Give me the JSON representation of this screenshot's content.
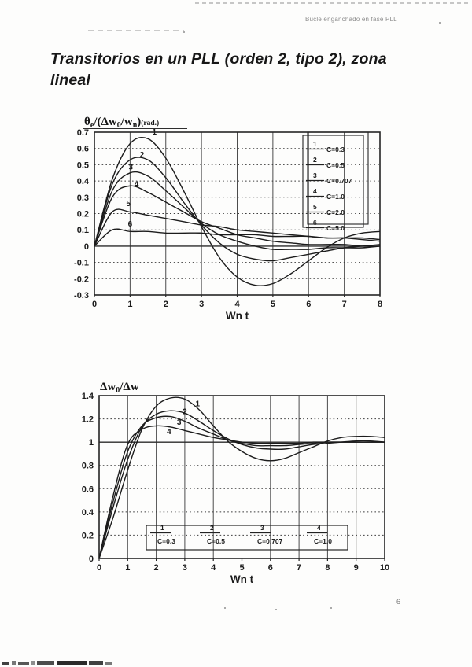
{
  "page": {
    "header": "Bucle enganchado en fase PLL",
    "title": "Transitorios en un PLL (orden 2, tipo 2), zona lineal",
    "page_number": "6"
  },
  "chart_data": [
    {
      "type": "line",
      "ylabel": "θe/(Δw0/wn)(rad.)",
      "ylabel_parts": [
        [
          "θ",
          "n"
        ],
        [
          "e",
          "s"
        ],
        [
          "/(Δw",
          "n"
        ],
        [
          "0",
          "s"
        ],
        [
          "/w",
          "n"
        ],
        [
          "n",
          "s"
        ],
        [
          ")",
          "n"
        ],
        [
          "(rad.)",
          "r"
        ]
      ],
      "xlabel": "Wn t",
      "xlim": [
        0,
        8
      ],
      "ylim": [
        -0.3,
        0.7
      ],
      "xticks": [
        0,
        1,
        2,
        3,
        4,
        5,
        6,
        7,
        8
      ],
      "yticks": [
        -0.3,
        -0.2,
        -0.1,
        0,
        0.1,
        0.2,
        0.3,
        0.4,
        0.5,
        0.6,
        0.7
      ],
      "solid_hline": 0,
      "grid": true,
      "legend_position": "top-right",
      "x": [
        0,
        0.5,
        1,
        1.5,
        2,
        2.5,
        3,
        3.5,
        4,
        4.5,
        5,
        5.5,
        6,
        6.5,
        7,
        7.5,
        8
      ],
      "series": [
        {
          "num": "1",
          "name": "C=0.3",
          "values": [
            0,
            0.41,
            0.63,
            0.66,
            0.54,
            0.34,
            0.12,
            -0.07,
            -0.19,
            -0.24,
            -0.23,
            -0.17,
            -0.09,
            -0.01,
            0.05,
            0.08,
            0.09
          ]
        },
        {
          "num": "2",
          "name": "C=0.5",
          "values": [
            0,
            0.38,
            0.53,
            0.53,
            0.42,
            0.27,
            0.13,
            0.02,
            -0.05,
            -0.08,
            -0.09,
            -0.07,
            -0.05,
            -0.03,
            -0.01,
            0.0,
            0.01
          ]
        },
        {
          "num": "3",
          "name": "C=0.707",
          "values": [
            0,
            0.34,
            0.45,
            0.43,
            0.34,
            0.24,
            0.14,
            0.07,
            0.03,
            0.0,
            -0.02,
            -0.02,
            -0.02,
            -0.01,
            -0.01,
            -0.01,
            0.0
          ]
        },
        {
          "num": "4",
          "name": "C=1.0",
          "values": [
            0,
            0.3,
            0.37,
            0.33,
            0.27,
            0.21,
            0.15,
            0.11,
            0.07,
            0.05,
            0.03,
            0.02,
            0.01,
            0.01,
            0.01,
            0.0,
            0.0
          ]
        },
        {
          "num": "5",
          "name": "C=2.0",
          "values": [
            0,
            0.21,
            0.21,
            0.19,
            0.17,
            0.15,
            0.13,
            0.12,
            0.1,
            0.09,
            0.08,
            0.07,
            0.06,
            0.05,
            0.05,
            0.04,
            0.03
          ]
        },
        {
          "num": "6",
          "name": "C=5.0",
          "values": [
            0,
            0.1,
            0.09,
            0.09,
            0.08,
            0.08,
            0.08,
            0.07,
            0.07,
            0.07,
            0.06,
            0.06,
            0.06,
            0.05,
            0.05,
            0.05,
            0.04
          ]
        }
      ],
      "curve_labels": [
        {
          "t": "1",
          "x": 1.68,
          "y": 0.685
        },
        {
          "t": "2",
          "x": 1.33,
          "y": 0.545
        },
        {
          "t": "3",
          "x": 1.02,
          "y": 0.47
        },
        {
          "t": "4",
          "x": 1.18,
          "y": 0.365
        },
        {
          "t": "5",
          "x": 0.95,
          "y": 0.245
        },
        {
          "t": "6",
          "x": 1.0,
          "y": 0.12
        }
      ]
    },
    {
      "type": "line",
      "ylabel": "Δw0/Δw",
      "ylabel_parts": [
        [
          "Δw",
          "n"
        ],
        [
          "0",
          "s"
        ],
        [
          "/Δw",
          "n"
        ]
      ],
      "xlabel": "Wn t",
      "xlim": [
        0,
        10
      ],
      "ylim": [
        0,
        1.4
      ],
      "xticks": [
        0,
        1,
        2,
        3,
        4,
        5,
        6,
        7,
        8,
        9,
        10
      ],
      "yticks": [
        0,
        0.2,
        0.4,
        0.6,
        0.8,
        1,
        1.2,
        1.4
      ],
      "solid_hline": 1,
      "grid": true,
      "legend_position": "bottom-center",
      "x": [
        0,
        0.5,
        1,
        1.5,
        2,
        2.5,
        3,
        3.5,
        4,
        4.5,
        5,
        5.5,
        6,
        6.5,
        7,
        7.5,
        8,
        8.5,
        9,
        9.5,
        10
      ],
      "series": [
        {
          "num": "1",
          "name": "C=0.3",
          "values": [
            0,
            0.36,
            0.76,
            1.11,
            1.31,
            1.38,
            1.37,
            1.28,
            1.14,
            1.01,
            0.92,
            0.86,
            0.84,
            0.86,
            0.91,
            0.96,
            1.01,
            1.04,
            1.05,
            1.05,
            1.04
          ]
        },
        {
          "num": "2",
          "name": "C=0.5",
          "values": [
            0,
            0.45,
            0.85,
            1.13,
            1.24,
            1.27,
            1.25,
            1.18,
            1.1,
            1.03,
            0.98,
            0.95,
            0.94,
            0.94,
            0.96,
            0.98,
            0.99,
            1.0,
            1.01,
            1.01,
            1.0
          ]
        },
        {
          "num": "3",
          "name": "C=0.707",
          "values": [
            0,
            0.5,
            0.92,
            1.14,
            1.21,
            1.22,
            1.18,
            1.12,
            1.07,
            1.02,
            0.99,
            0.97,
            0.97,
            0.97,
            0.98,
            0.99,
            1.0,
            1.0,
            1.0,
            1.0,
            1.0
          ]
        },
        {
          "num": "4",
          "name": "C=1.0",
          "values": [
            0,
            0.55,
            0.98,
            1.11,
            1.14,
            1.13,
            1.1,
            1.07,
            1.04,
            1.02,
            1.0,
            0.99,
            0.99,
            0.99,
            0.99,
            1.0,
            1.0,
            1.0,
            1.0,
            1.0,
            1.0
          ]
        }
      ],
      "curve_labels": [
        {
          "t": "1",
          "x": 3.45,
          "y": 1.31
        },
        {
          "t": "2",
          "x": 3.0,
          "y": 1.24
        },
        {
          "t": "3",
          "x": 2.8,
          "y": 1.15
        },
        {
          "t": "4",
          "x": 2.45,
          "y": 1.07
        }
      ]
    }
  ]
}
